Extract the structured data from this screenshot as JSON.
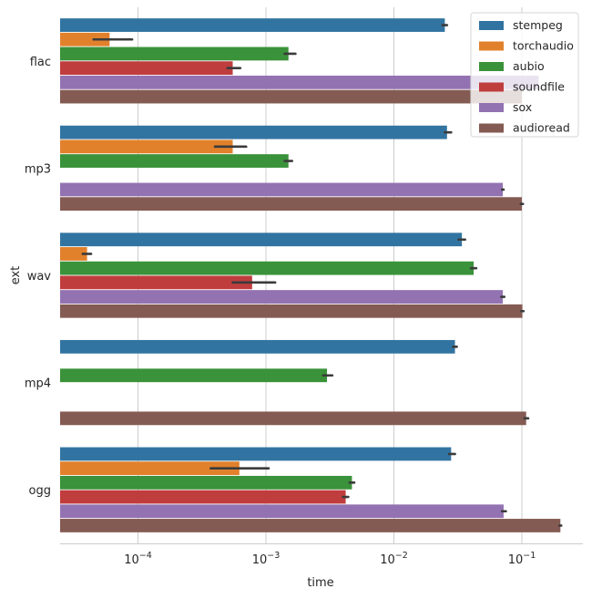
{
  "chart_data": {
    "type": "bar",
    "orientation": "horizontal",
    "xscale": "log",
    "xlabel": "time",
    "ylabel": "ext",
    "xlim": [
      2.5e-05,
      0.3
    ],
    "grid": "x",
    "legend_position": "top-right",
    "categories": [
      "flac",
      "mp3",
      "wav",
      "mp4",
      "ogg"
    ],
    "xticks": [
      {
        "value": 0.0001,
        "base": "10",
        "exp": "−4"
      },
      {
        "value": 0.001,
        "base": "10",
        "exp": "−3"
      },
      {
        "value": 0.01,
        "base": "10",
        "exp": "−2"
      },
      {
        "value": 0.1,
        "base": "10",
        "exp": "−1"
      }
    ],
    "series": [
      {
        "name": "stempeg",
        "color": "#3274a1",
        "values": [
          0.025,
          0.026,
          0.034,
          0.03,
          0.028
        ],
        "err": [
          [
            0.024,
            0.026
          ],
          [
            0.025,
            0.028
          ],
          [
            0.032,
            0.036
          ],
          [
            0.029,
            0.031
          ],
          [
            0.027,
            0.03
          ]
        ]
      },
      {
        "name": "torchaudio",
        "color": "#e1812c",
        "values": [
          6e-05,
          0.00055,
          4e-05,
          null,
          0.00062
        ],
        "err": [
          [
            4.5e-05,
            9e-05
          ],
          [
            0.0004,
            0.0007
          ],
          [
            3.7e-05,
            4.3e-05
          ],
          null,
          [
            0.00037,
            0.00105
          ]
        ]
      },
      {
        "name": "aubio",
        "color": "#3a923a",
        "values": [
          0.0015,
          0.0015,
          0.042,
          0.003,
          0.0047
        ],
        "err": [
          [
            0.0014,
            0.0017
          ],
          [
            0.0014,
            0.0016
          ],
          [
            0.04,
            0.044
          ],
          [
            0.0028,
            0.0033
          ],
          [
            0.0045,
            0.0049
          ]
        ]
      },
      {
        "name": "soundfile",
        "color": "#c03d3e",
        "values": [
          0.00055,
          null,
          0.00078,
          null,
          0.0042
        ],
        "err": [
          [
            0.0005,
            0.00063
          ],
          null,
          [
            0.00055,
            0.00118
          ],
          null,
          [
            0.004,
            0.0044
          ]
        ]
      },
      {
        "name": "sox",
        "color": "#9372b2",
        "values": [
          0.135,
          0.071,
          0.071,
          null,
          0.072
        ],
        "err": [
          null,
          [
            0.07,
            0.072
          ],
          [
            0.069,
            0.073
          ],
          null,
          [
            0.07,
            0.075
          ]
        ]
      },
      {
        "name": "audioread",
        "color": "#845b53",
        "values": [
          0.1,
          0.1,
          0.101,
          0.108,
          0.2
        ],
        "err": [
          null,
          [
            0.098,
            0.102
          ],
          [
            0.099,
            0.103
          ],
          [
            0.105,
            0.112
          ],
          [
            0.197,
            0.203
          ]
        ]
      }
    ]
  }
}
